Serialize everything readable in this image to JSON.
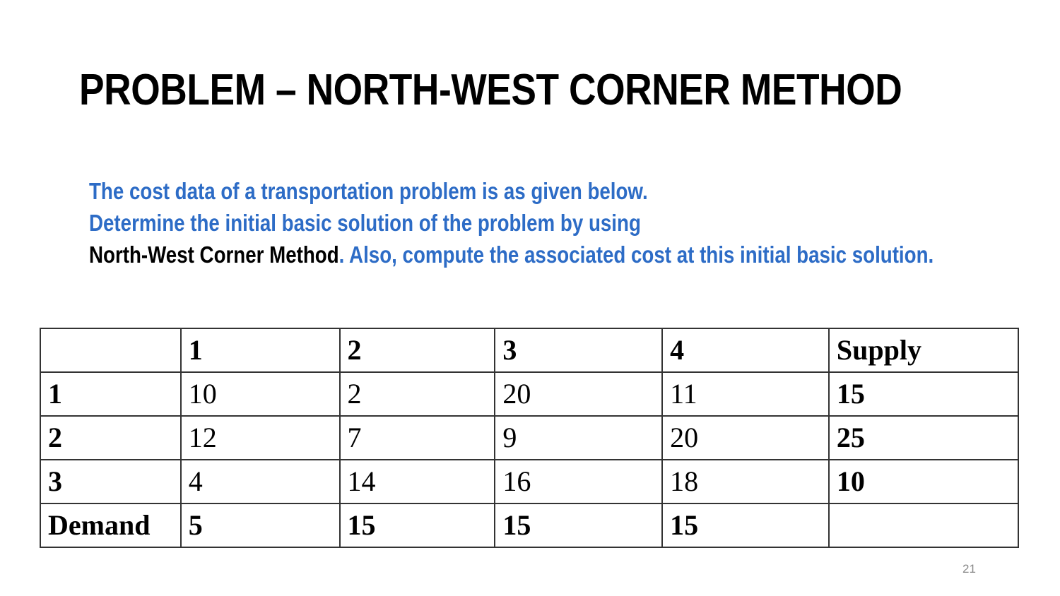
{
  "slide": {
    "title": "PROBLEM – NORTH-WEST CORNER METHOD",
    "problem_line1": "The cost data of a transportation problem is as given below.",
    "problem_line2": "Determine the initial basic solution of the problem by using",
    "problem_line3_method": "North-West Corner Method",
    "problem_line3_rest": ". Also, compute the associated cost at this initial basic solution.",
    "page_number": "21"
  },
  "table": {
    "header": [
      "",
      "1",
      "2",
      "3",
      "4",
      "Supply"
    ],
    "rows": [
      {
        "source": "1",
        "costs": [
          "10",
          "2",
          "20",
          "11"
        ],
        "supply": "15"
      },
      {
        "source": "2",
        "costs": [
          "12",
          "7",
          "9",
          "20"
        ],
        "supply": "25"
      },
      {
        "source": "3",
        "costs": [
          "4",
          "14",
          "16",
          "18"
        ],
        "supply": "10"
      }
    ],
    "demand_row": {
      "label": "Demand",
      "values": [
        "5",
        "15",
        "15",
        "15"
      ],
      "supply": ""
    }
  },
  "colors": {
    "accent_blue": "#2d6cc6",
    "text": "#000000",
    "page_number": "#8a8a8a"
  }
}
